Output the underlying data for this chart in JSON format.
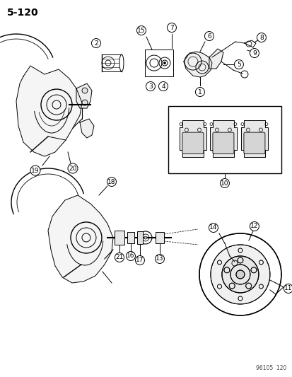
{
  "page_number": "5-120",
  "footer": "96105  120",
  "bg": "#ffffff",
  "fg": "#000000",
  "fig_w": 4.14,
  "fig_h": 5.33,
  "dpi": 100,
  "lw": 0.7,
  "label_r": 6.5,
  "label_fs": 6.5,
  "title_fs": 10
}
